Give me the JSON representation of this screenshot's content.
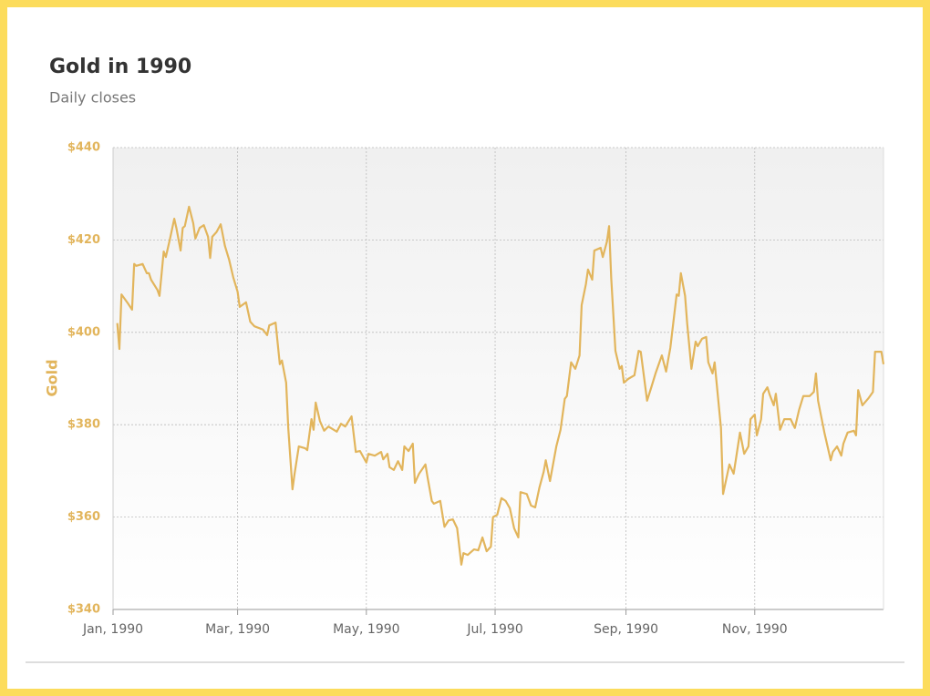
{
  "chart_data": {
    "type": "line",
    "title": "Gold in 1990",
    "subtitle": "Daily closes",
    "y_label": "Gold",
    "color": "#e2b55c",
    "grid": true,
    "xlim": [
      0,
      365
    ],
    "ylim": [
      340,
      440
    ],
    "xticks": [
      {
        "value": 0,
        "label": "Jan, 1990"
      },
      {
        "value": 59,
        "label": "Mar, 1990"
      },
      {
        "value": 120,
        "label": "May, 1990"
      },
      {
        "value": 181,
        "label": "Jul, 1990"
      },
      {
        "value": 243,
        "label": "Sep, 1990"
      },
      {
        "value": 304,
        "label": "Nov, 1990"
      }
    ],
    "yticks": [
      {
        "value": 340,
        "label": "$340"
      },
      {
        "value": 360,
        "label": "$360"
      },
      {
        "value": 380,
        "label": "$380"
      },
      {
        "value": 400,
        "label": "$400"
      },
      {
        "value": 420,
        "label": "$420"
      },
      {
        "value": 440,
        "label": "$440"
      }
    ],
    "x": [
      2,
      3,
      4,
      7,
      9,
      10,
      11,
      14,
      16,
      17,
      18,
      21,
      22,
      24,
      25,
      27,
      29,
      30,
      32,
      33,
      34,
      36,
      38,
      39,
      41,
      43,
      45,
      46,
      47,
      49,
      51,
      53,
      55,
      57,
      59,
      60,
      63,
      65,
      67,
      71,
      73,
      74,
      77,
      79,
      80,
      82,
      83,
      85,
      86,
      88,
      91,
      92,
      94,
      95,
      96,
      98,
      100,
      102,
      106,
      108,
      110,
      113,
      115,
      117,
      120,
      121,
      124,
      127,
      128,
      130,
      131,
      133,
      135,
      137,
      138,
      140,
      142,
      143,
      145,
      148,
      149,
      151,
      152,
      155,
      157,
      159,
      161,
      163,
      165,
      166,
      168,
      171,
      173,
      175,
      177,
      179,
      180,
      182,
      184,
      186,
      188,
      190,
      192,
      193,
      196,
      198,
      200,
      202,
      204,
      205,
      207,
      210,
      212,
      214,
      215,
      217,
      219,
      221,
      222,
      224,
      225,
      227,
      228,
      231,
      232,
      234,
      235,
      236,
      238,
      240,
      241,
      242,
      244,
      247,
      249,
      250,
      253,
      255,
      257,
      260,
      262,
      263,
      264,
      267,
      268,
      269,
      271,
      272,
      274,
      276,
      277,
      279,
      281,
      282,
      284,
      285,
      288,
      289,
      292,
      294,
      295,
      297,
      299,
      301,
      302,
      304,
      305,
      307,
      308,
      310,
      311,
      313,
      314,
      316,
      318,
      321,
      323,
      325,
      327,
      330,
      332,
      333,
      334,
      337,
      339,
      340,
      341,
      343,
      345,
      346,
      348,
      351,
      352,
      353,
      355,
      358,
      360,
      361,
      364,
      365
    ],
    "values": [
      402,
      396.4,
      408.2,
      406.3,
      404.9,
      414.8,
      414.4,
      414.8,
      412.8,
      412.8,
      411.4,
      409.2,
      407.9,
      417.5,
      416.3,
      420.3,
      424.6,
      422.6,
      417.7,
      422.6,
      423,
      427.2,
      423.6,
      420.3,
      422.6,
      423.2,
      420.7,
      416.1,
      420.7,
      421.7,
      423.4,
      418.7,
      415.7,
      411.8,
      408.8,
      405.5,
      406.5,
      402.3,
      401.3,
      400.6,
      399.4,
      401.5,
      402.1,
      393.1,
      393.9,
      389.1,
      379.3,
      366,
      369.4,
      375.3,
      374.9,
      374.5,
      381.2,
      378.9,
      384.8,
      380.8,
      378.7,
      379.6,
      378.5,
      380.2,
      379.6,
      381.8,
      374.1,
      374.3,
      371.8,
      373.7,
      373.3,
      374.1,
      372.5,
      373.7,
      370.8,
      370.2,
      372.1,
      370.2,
      375.3,
      374.3,
      375.9,
      367.4,
      369.4,
      371.4,
      368.6,
      363.5,
      362.9,
      363.5,
      357.9,
      359.3,
      359.5,
      357.6,
      349.7,
      352.2,
      351.8,
      353,
      352.8,
      355.6,
      352.6,
      353.6,
      360,
      360.5,
      364.1,
      363.5,
      361.9,
      357.6,
      355.6,
      365.4,
      365,
      362.5,
      362.1,
      366.4,
      369.8,
      372.3,
      367.8,
      375.3,
      378.9,
      385.6,
      386.2,
      393.5,
      392.1,
      395,
      405.9,
      410.4,
      413.6,
      411.4,
      417.7,
      418.3,
      416.3,
      419.7,
      423,
      411.8,
      396,
      392.1,
      392.7,
      389.1,
      389.9,
      390.7,
      396,
      395.8,
      385.2,
      388.1,
      391.1,
      395,
      391.5,
      394.1,
      396.6,
      408.2,
      407.9,
      412.8,
      407.9,
      401.9,
      392.1,
      398,
      397,
      398.6,
      399,
      393.5,
      391.1,
      393.5,
      379.3,
      365,
      371.4,
      369.4,
      372.3,
      378.3,
      373.7,
      375.3,
      381.2,
      382.2,
      377.7,
      381.2,
      386.7,
      388.1,
      386.6,
      384.2,
      386.7,
      378.9,
      381.2,
      381.2,
      379.3,
      383.2,
      386.2,
      386.2,
      387.1,
      391.1,
      385.2,
      378.3,
      374.3,
      372.3,
      374.1,
      375.3,
      373.3,
      375.9,
      378.3,
      378.7,
      377.7,
      387.5,
      384.2,
      385.8,
      387.1,
      395.8,
      395.8,
      393.1
    ]
  }
}
